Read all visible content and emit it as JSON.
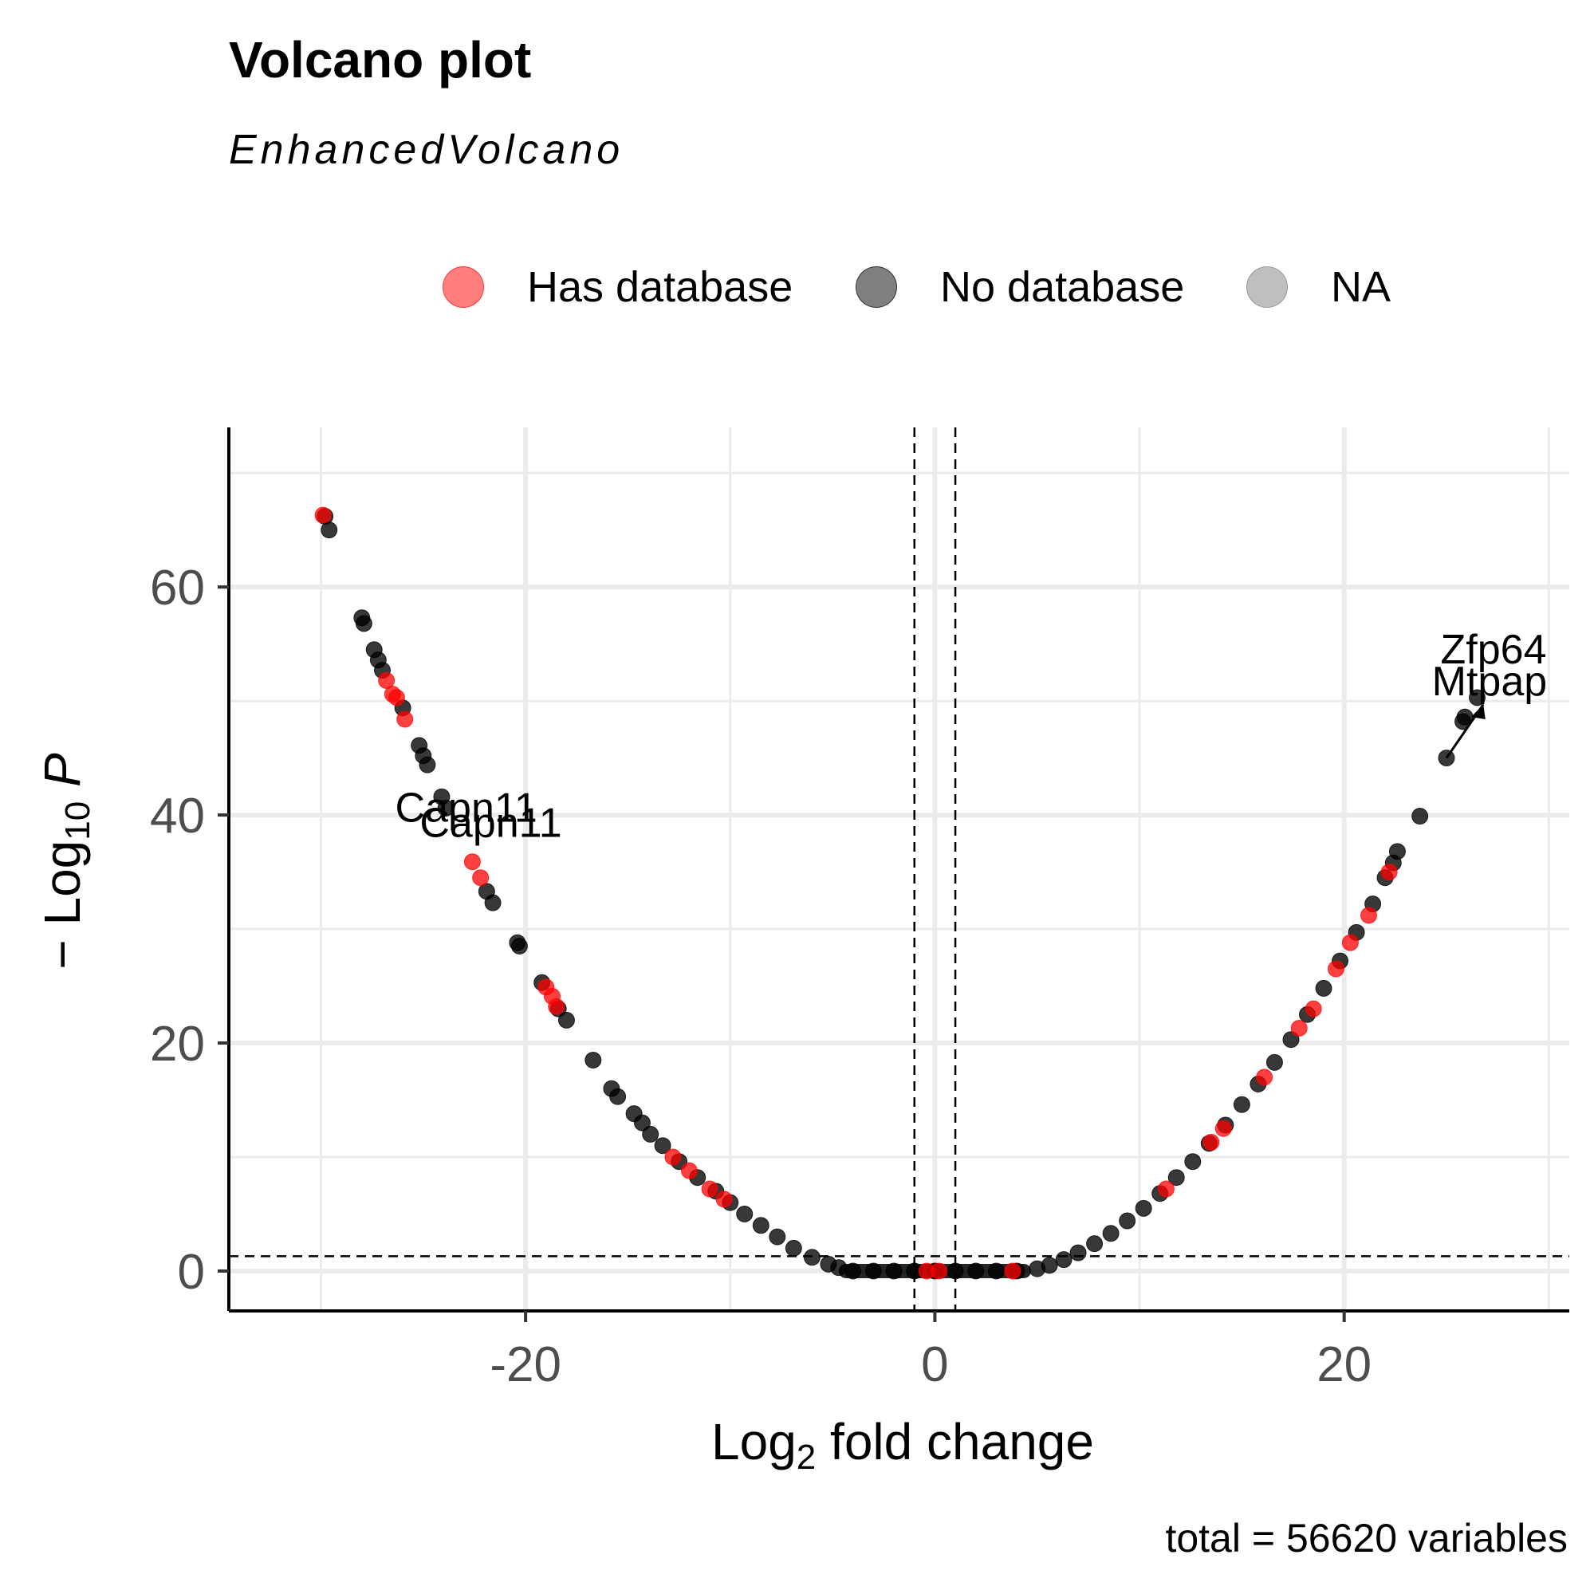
{
  "chart_data": {
    "type": "scatter",
    "title": "Volcano plot",
    "subtitle": "EnhancedVolcano",
    "caption": "total = 56620 variables",
    "xlabel": {
      "main": "Log",
      "sub": "2",
      "rest": " fold change"
    },
    "ylabel": {
      "pre": "− Log",
      "sub": "10",
      "post": " P"
    },
    "xlim": [
      -34.5,
      31
    ],
    "ylim": [
      -3.5,
      74
    ],
    "x_ticks": [
      -20,
      0,
      20
    ],
    "x_tick_labels": [
      "-20",
      "0",
      "20"
    ],
    "y_ticks": [
      0,
      20,
      40,
      60
    ],
    "y_tick_labels": [
      "0",
      "20",
      "40",
      "60"
    ],
    "grid": true,
    "cutoffs": {
      "x": [
        -1,
        1
      ],
      "y": 1.3
    },
    "legend": {
      "position": "top",
      "entries": [
        {
          "name": "Has database",
          "color": "#ff0000"
        },
        {
          "name": "No database",
          "color": "#000000"
        },
        {
          "name": "NA",
          "color": "#808080"
        }
      ]
    },
    "series": [
      {
        "name": "No database",
        "color": "#000000",
        "points": [
          [
            -29.8,
            66.2
          ],
          [
            -29.6,
            65.0
          ],
          [
            -28.0,
            57.3
          ],
          [
            -27.9,
            56.8
          ],
          [
            -27.4,
            54.5
          ],
          [
            -27.2,
            53.6
          ],
          [
            -27.0,
            52.7
          ],
          [
            -26.0,
            49.4
          ],
          [
            -25.2,
            46.1
          ],
          [
            -25.0,
            45.2
          ],
          [
            -24.8,
            44.4
          ],
          [
            -24.1,
            41.6
          ],
          [
            -23.9,
            40.6
          ],
          [
            -21.9,
            33.3
          ],
          [
            -21.6,
            32.3
          ],
          [
            -20.4,
            28.8
          ],
          [
            -20.3,
            28.5
          ],
          [
            -19.2,
            25.3
          ],
          [
            -18.4,
            23.0
          ],
          [
            -18.0,
            22.0
          ],
          [
            -16.7,
            18.5
          ],
          [
            -15.8,
            16.0
          ],
          [
            -15.5,
            15.3
          ],
          [
            -14.7,
            13.8
          ],
          [
            -14.3,
            13.0
          ],
          [
            -13.9,
            12.0
          ],
          [
            -13.3,
            11.0
          ],
          [
            -12.5,
            9.6
          ],
          [
            -11.6,
            8.2
          ],
          [
            -10.7,
            7.0
          ],
          [
            -10.0,
            6.0
          ],
          [
            -9.3,
            5.0
          ],
          [
            -8.5,
            4.0
          ],
          [
            -7.7,
            3.0
          ],
          [
            -6.9,
            2.0
          ],
          [
            -6.0,
            1.2
          ],
          [
            -5.2,
            0.6
          ],
          [
            -4.7,
            0.3
          ],
          [
            -4.0,
            0
          ],
          [
            -3.0,
            0
          ],
          [
            -2.0,
            0
          ],
          [
            -1.0,
            0
          ],
          [
            0,
            0
          ],
          [
            1.0,
            0
          ],
          [
            2.0,
            0
          ],
          [
            3.0,
            0
          ],
          [
            4.0,
            0
          ],
          [
            5.0,
            0.2
          ],
          [
            5.6,
            0.5
          ],
          [
            6.3,
            1.0
          ],
          [
            7.0,
            1.6
          ],
          [
            7.8,
            2.4
          ],
          [
            8.6,
            3.3
          ],
          [
            9.4,
            4.4
          ],
          [
            10.2,
            5.5
          ],
          [
            11.0,
            6.8
          ],
          [
            11.8,
            8.2
          ],
          [
            12.6,
            9.6
          ],
          [
            13.4,
            11.2
          ],
          [
            14.2,
            12.8
          ],
          [
            15.0,
            14.6
          ],
          [
            15.8,
            16.4
          ],
          [
            16.6,
            18.3
          ],
          [
            17.4,
            20.3
          ],
          [
            18.2,
            22.5
          ],
          [
            19.0,
            24.8
          ],
          [
            19.8,
            27.2
          ],
          [
            20.6,
            29.7
          ],
          [
            21.4,
            32.2
          ],
          [
            22.0,
            34.5
          ],
          [
            22.4,
            35.8
          ],
          [
            22.6,
            36.8
          ],
          [
            23.7,
            39.9
          ],
          [
            25.0,
            45.0
          ],
          [
            25.8,
            48.2
          ],
          [
            25.9,
            48.6
          ],
          [
            26.5,
            50.3
          ]
        ]
      },
      {
        "name": "Has database",
        "color": "#ff0000",
        "points": [
          [
            -29.9,
            66.3
          ],
          [
            -26.8,
            51.8
          ],
          [
            -26.5,
            50.6
          ],
          [
            -26.3,
            50.3
          ],
          [
            -25.9,
            48.4
          ],
          [
            -22.6,
            35.9
          ],
          [
            -22.2,
            34.5
          ],
          [
            -19.0,
            24.9
          ],
          [
            -18.7,
            24.1
          ],
          [
            -18.5,
            23.2
          ],
          [
            -12.8,
            10.0
          ],
          [
            -12.0,
            8.8
          ],
          [
            -11.0,
            7.2
          ],
          [
            -10.3,
            6.3
          ],
          [
            -0.4,
            0
          ],
          [
            0.2,
            0
          ],
          [
            3.8,
            0
          ],
          [
            11.3,
            7.2
          ],
          [
            13.5,
            11.3
          ],
          [
            14.1,
            12.5
          ],
          [
            16.1,
            17.0
          ],
          [
            17.8,
            21.3
          ],
          [
            18.5,
            23.0
          ],
          [
            19.6,
            26.5
          ],
          [
            20.3,
            28.8
          ],
          [
            21.2,
            31.2
          ],
          [
            22.2,
            35.0
          ]
        ]
      }
    ],
    "annotations": [
      {
        "label": "Capn11",
        "x": -22.9,
        "y": 39.4
      },
      {
        "label": "Capn11",
        "x": -21.7,
        "y": 38.1
      },
      {
        "label": "Zfp64",
        "x": 27.3,
        "y": 53.3
      },
      {
        "label": "Mtpap",
        "x": 27.1,
        "y": 50.5
      }
    ]
  }
}
